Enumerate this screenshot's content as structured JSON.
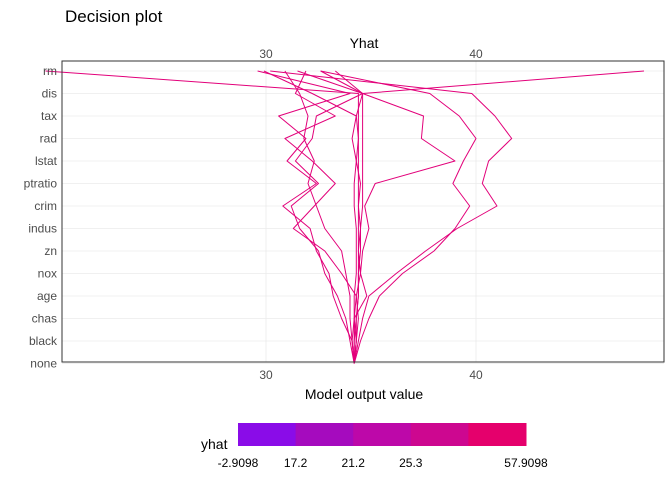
{
  "chart_data": {
    "type": "line",
    "title": "Decision plot",
    "top_axis_title": "Yhat",
    "xlabel": "Model output value",
    "x_ticks": [
      30,
      40
    ],
    "xlim": [
      19.5,
      48.0
    ],
    "features": [
      "rm",
      "dis",
      "tax",
      "rad",
      "lstat",
      "ptratio",
      "crim",
      "indus",
      "zn",
      "nox",
      "age",
      "chas",
      "black",
      "none"
    ],
    "line_color_hint": "#E2007A",
    "series": [
      {
        "values": [
          34.2,
          34.3,
          34.3,
          34.4,
          34.4,
          34.4,
          34.4,
          34.4,
          34.4,
          34.4,
          34.4,
          34.4,
          34.4,
          19.5
        ]
      },
      {
        "values": [
          34.2,
          34.3,
          34.2,
          34.8,
          34.5,
          34.6,
          34.9,
          34.7,
          35.2,
          39.0,
          37.4,
          37.5,
          34.6,
          48.0
        ]
      },
      {
        "values": [
          34.2,
          34.1,
          34.0,
          34.0,
          33.8,
          33.6,
          32.8,
          32.4,
          32.0,
          32.3,
          31.8,
          32.0,
          31.6,
          30.9
        ]
      },
      {
        "values": [
          34.2,
          34.1,
          33.6,
          33.2,
          33.0,
          32.4,
          32.1,
          30.8,
          32.4,
          31.0,
          31.9,
          30.6,
          34.0,
          29.6
        ]
      },
      {
        "values": [
          34.2,
          34.4,
          34.6,
          34.9,
          36.2,
          37.6,
          39.1,
          41.0,
          40.3,
          40.6,
          41.7,
          40.9,
          39.8,
          30.2
        ]
      },
      {
        "values": [
          34.2,
          34.5,
          34.9,
          35.4,
          36.5,
          38.0,
          39.0,
          39.7,
          38.9,
          39.4,
          40.0,
          39.2,
          37.8,
          32.6
        ]
      },
      {
        "values": [
          34.2,
          34.2,
          34.3,
          34.4,
          34.4,
          34.5,
          34.5,
          34.6,
          34.6,
          34.6,
          34.6,
          34.6,
          34.6,
          33.3
        ]
      },
      {
        "values": [
          34.2,
          34.1,
          34.2,
          34.3,
          33.6,
          32.8,
          31.3,
          32.3,
          33.3,
          32.2,
          30.9,
          33.3,
          31.4,
          31.9
        ]
      },
      {
        "values": [
          34.2,
          34.0,
          33.8,
          33.4,
          32.8,
          32.5,
          31.6,
          31.2,
          32.5,
          31.4,
          32.2,
          32.4,
          34.6,
          32.6
        ]
      },
      {
        "values": [
          34.2,
          34.2,
          34.2,
          34.2,
          34.3,
          34.3,
          34.3,
          34.2,
          34.2,
          34.3,
          34.1,
          34.3,
          32.2,
          29.9
        ]
      },
      {
        "values": [
          34.2,
          34.3,
          34.4,
          34.3,
          34.5,
          34.4,
          34.5,
          34.4,
          34.5,
          34.3,
          34.4,
          34.3,
          34.6,
          31.5
        ]
      }
    ],
    "legend": {
      "title": "yhat",
      "position": "bottom",
      "labels": [
        "-2.9098",
        "17.2",
        "21.2",
        "25.3",
        "57.9098"
      ],
      "colors": [
        "#8A0CE8",
        "#A50BBE",
        "#BD08A9",
        "#CD0790",
        "#E5006C"
      ]
    },
    "grid": true
  }
}
